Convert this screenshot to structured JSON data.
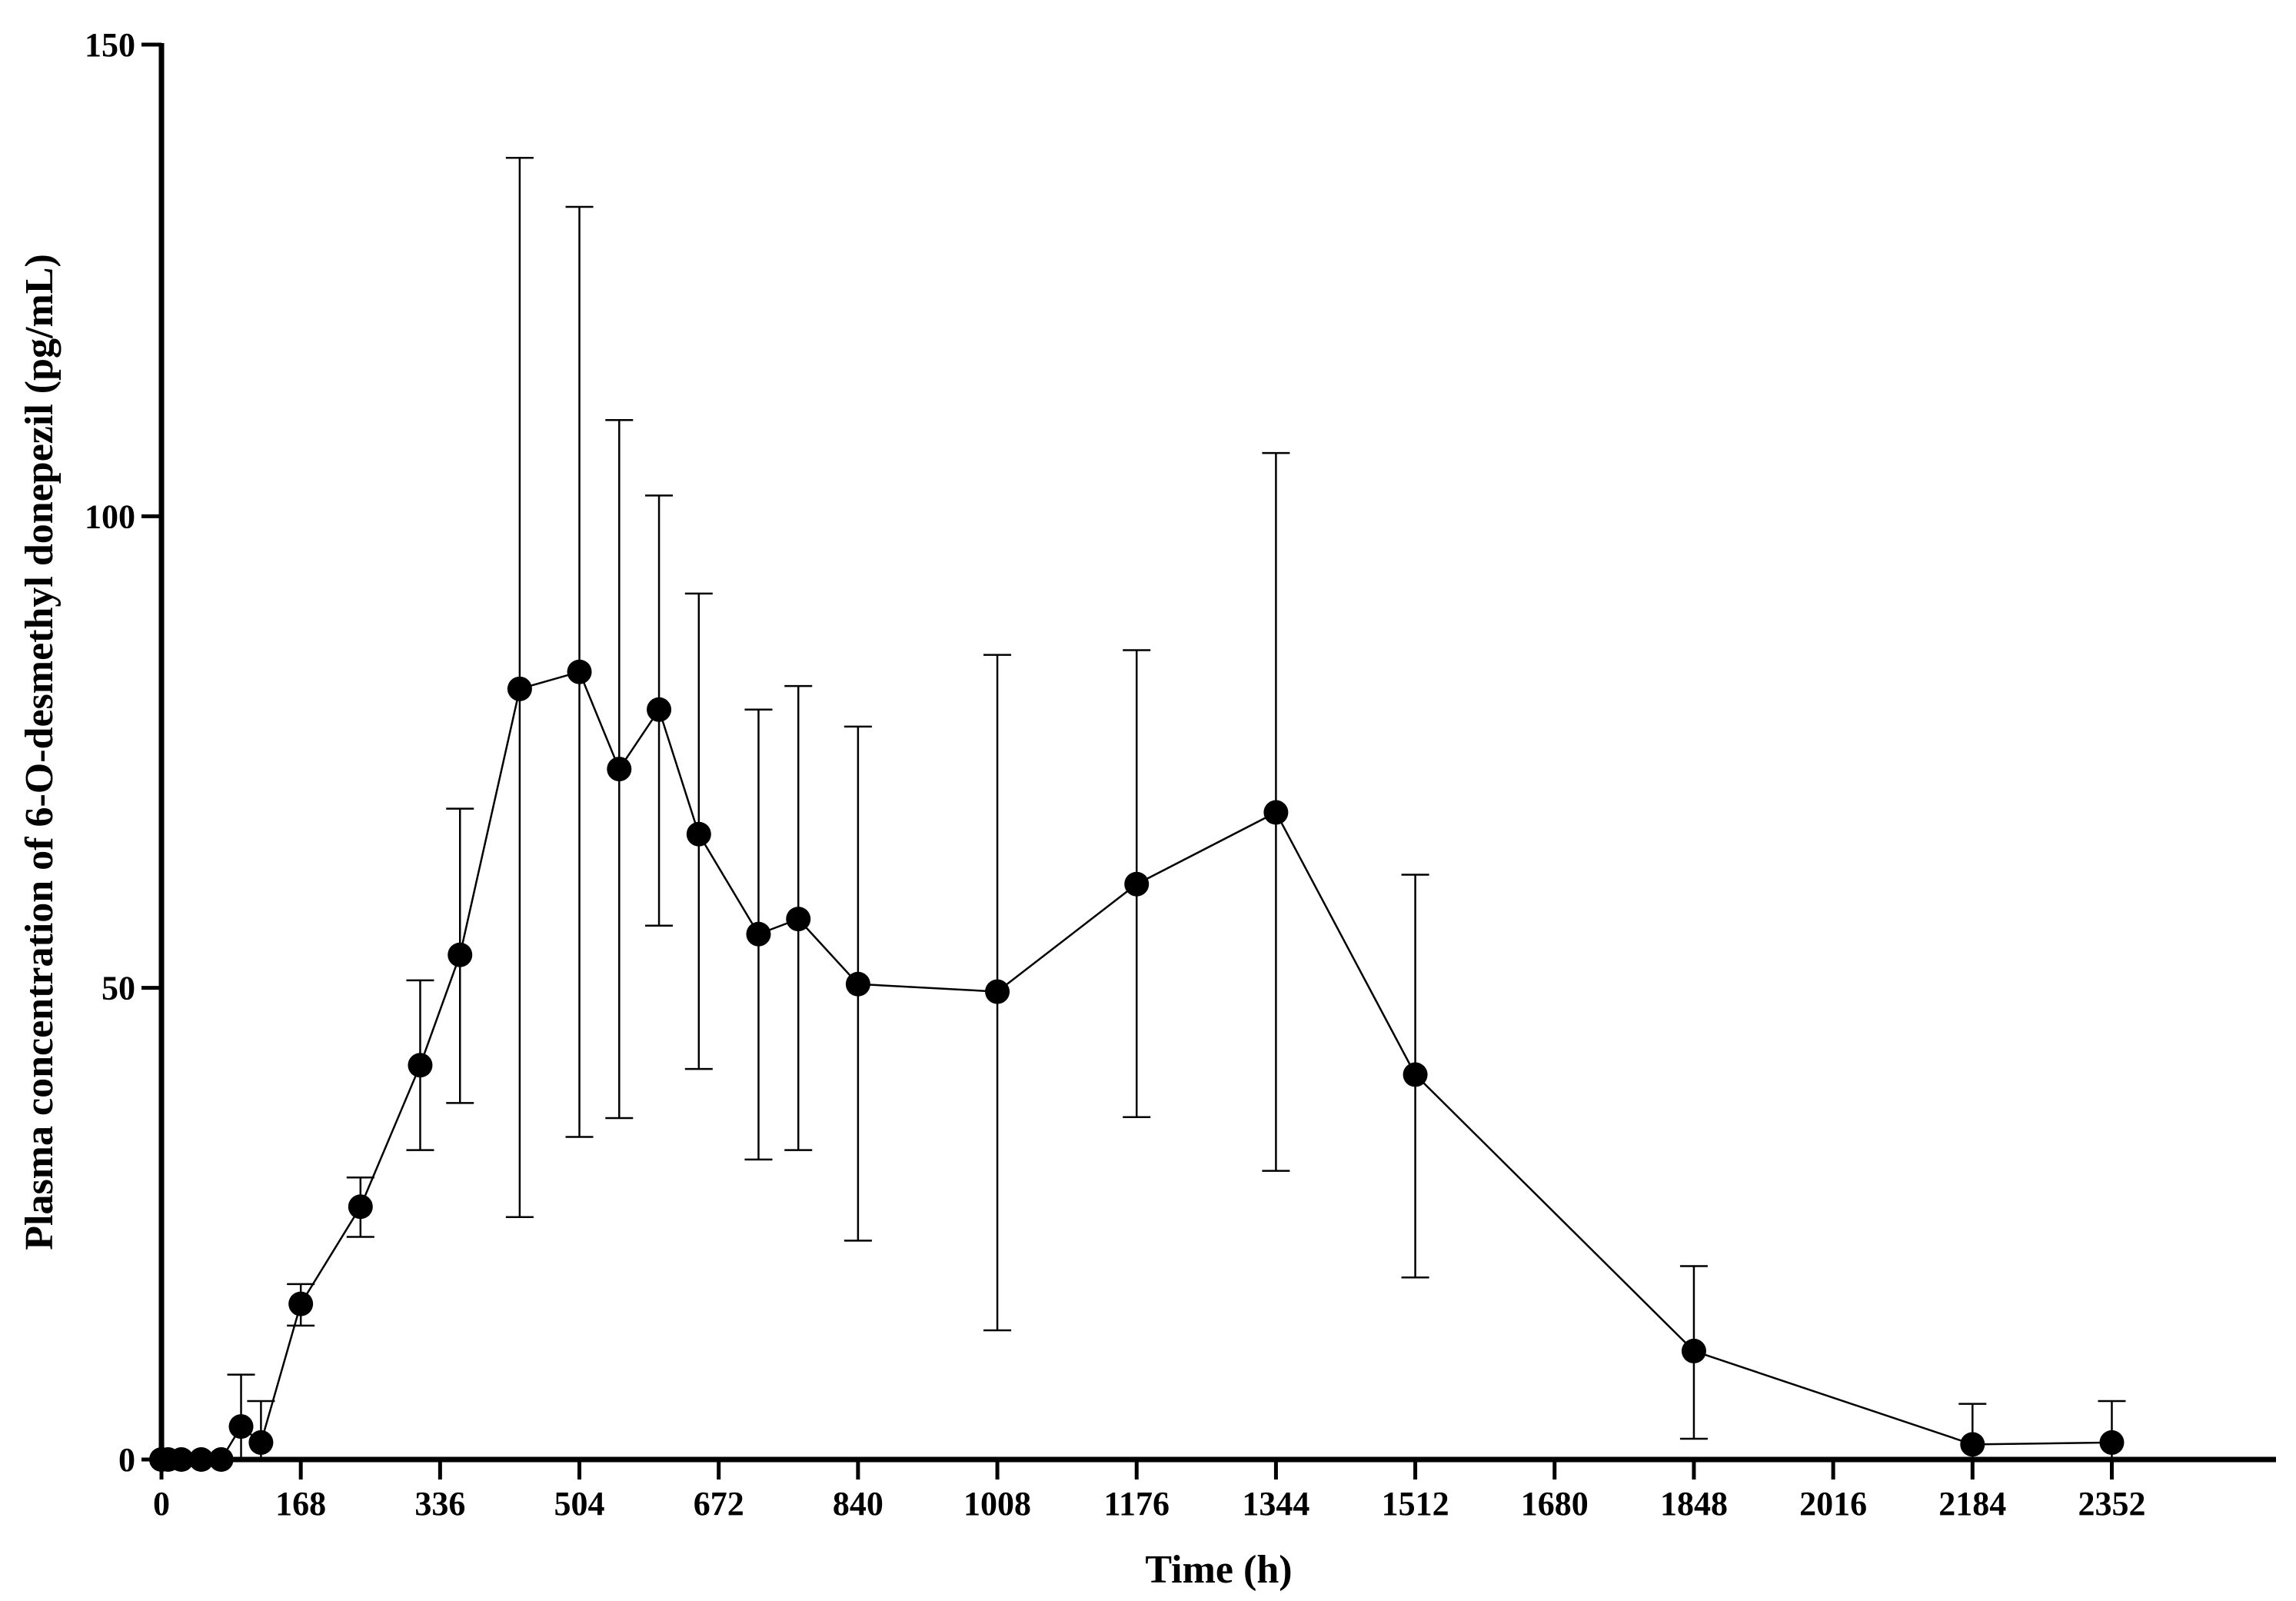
{
  "chart_data": {
    "type": "line",
    "xlabel": "Time (h)",
    "ylabel": "Plasma concentration of 6-O-desmethyl donepezil (pg/mL)",
    "xlim": [
      0,
      2550
    ],
    "ylim": [
      0,
      150
    ],
    "xticks": [
      0,
      168,
      336,
      504,
      672,
      840,
      1008,
      1176,
      1344,
      1512,
      1680,
      1848,
      2016,
      2184,
      2352
    ],
    "yticks": [
      0,
      50,
      100,
      150
    ],
    "grid": false,
    "legend": "none",
    "colors": {
      "line": "#000000",
      "marker": "#000000",
      "axis": "#000000"
    },
    "series": [
      {
        "x": [
          0,
          8,
          24,
          48,
          72,
          96,
          120,
          168,
          240,
          312,
          360,
          432,
          504,
          552,
          600,
          648,
          720,
          768,
          840,
          1008,
          1176,
          1344,
          1512,
          1848,
          2184,
          2352
        ],
        "y": [
          0,
          0,
          0,
          0,
          0,
          3.5,
          1.8,
          16.5,
          26.8,
          41.8,
          53.5,
          81.7,
          83.5,
          73.2,
          79.5,
          66.3,
          55.7,
          57.3,
          50.4,
          49.6,
          61.0,
          68.6,
          40.8,
          11.5,
          1.6,
          1.8
        ],
        "lower": [
          0,
          0,
          0,
          0,
          0,
          0,
          0,
          14.2,
          23.6,
          32.8,
          37.8,
          25.7,
          34.2,
          36.2,
          56.6,
          41.4,
          31.8,
          32.8,
          23.2,
          13.7,
          36.3,
          30.6,
          19.3,
          2.2,
          0,
          0
        ],
        "upper": [
          0,
          0,
          0,
          0,
          0,
          9.0,
          6.2,
          18.6,
          29.9,
          50.8,
          69.0,
          138.0,
          132.8,
          110.2,
          102.2,
          91.8,
          79.5,
          82.0,
          77.7,
          85.3,
          85.8,
          106.7,
          62.0,
          20.5,
          5.9,
          6.2
        ]
      }
    ]
  }
}
